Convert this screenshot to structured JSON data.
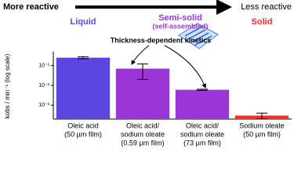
{
  "chart_data": {
    "type": "bar",
    "top_left": "More reactive",
    "top_right": "Less reactive",
    "phases": [
      {
        "text": "Liquid",
        "color": "#5b47e0"
      },
      {
        "text": "Semi-solid",
        "color": "#9a35d8"
      },
      {
        "text": "(self-assembled)",
        "color": "#9a35d8"
      },
      {
        "text": "Solid",
        "color": "#ff2a2a"
      }
    ],
    "annotation": "Thickness-dependent kinetics",
    "y_label": "kobs / min⁻¹ (log scale)",
    "categories": [
      [
        "Oleic acid",
        "(50 µm film)"
      ],
      [
        "Oleic acid/",
        "sodium oleate",
        "(0.59 µm film)"
      ],
      [
        "Oleic acid/",
        "sodium oleate",
        "(73 µm film)"
      ],
      [
        "Sodium oleate",
        "(50 µm film)"
      ]
    ],
    "values": [
      0.25,
      0.07,
      0.006,
      0.0003
    ],
    "errors": [
      0.03,
      0.05,
      0.0004,
      0.0001
    ],
    "colors": [
      "#5b47e0",
      "#9a35d8",
      "#9a35d8",
      "#ff2a2a"
    ],
    "log_scale": true,
    "ylim": [
      0.0002,
      0.5
    ],
    "yticks": [
      {
        "value": 0.1,
        "label": "10⁻¹"
      },
      {
        "value": 0.01,
        "label": "10⁻²"
      },
      {
        "value": 0.001,
        "label": "10⁻³"
      }
    ]
  }
}
